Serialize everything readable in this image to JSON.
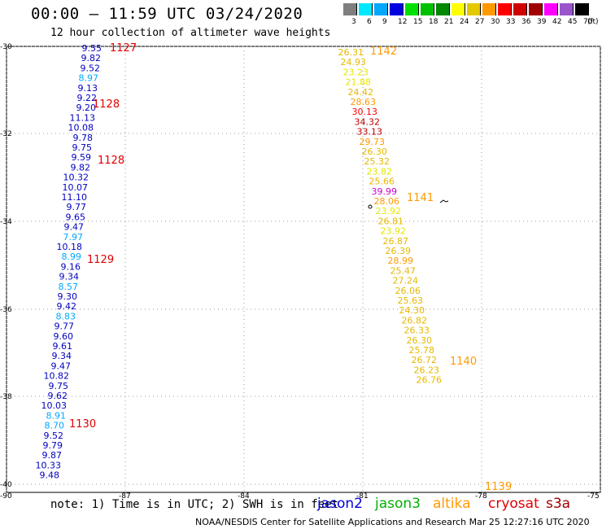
{
  "header": {
    "title": "00:00 — 11:59 UTC 03/24/2020",
    "subtitle": "12 hour collection of altimeter wave heights"
  },
  "scale": {
    "unit_label": "(ft)",
    "steps": [
      {
        "label": "3",
        "color": "#7f7f7f"
      },
      {
        "label": "6",
        "color": "#00e8ff"
      },
      {
        "label": "9",
        "color": "#00a8ff"
      },
      {
        "label": "12",
        "color": "#0000e0"
      },
      {
        "label": "15",
        "color": "#00e000"
      },
      {
        "label": "18",
        "color": "#00c000"
      },
      {
        "label": "21",
        "color": "#008800"
      },
      {
        "label": "24",
        "color": "#ffff00"
      },
      {
        "label": "27",
        "color": "#e6c800"
      },
      {
        "label": "30",
        "color": "#ff9900"
      },
      {
        "label": "33",
        "color": "#ff0000"
      },
      {
        "label": "36",
        "color": "#d00000"
      },
      {
        "label": "39",
        "color": "#a00000"
      },
      {
        "label": "42",
        "color": "#ff00ff"
      },
      {
        "label": "45",
        "color": "#9955cc"
      },
      {
        "label": "70",
        "color": "#000000"
      }
    ]
  },
  "map": {
    "lat_labels": [
      "-30",
      "-32",
      "-34",
      "-36",
      "-38",
      "-40"
    ],
    "lon_labels": [
      "-90",
      "-87",
      "-84",
      "-81",
      "-78",
      "-75"
    ]
  },
  "tracks": [
    {
      "time_label": {
        "text": "1127",
        "color": "#e00000"
      },
      "values": [
        {
          "v": "9.55",
          "c": "#0000c0"
        },
        {
          "v": "9.82",
          "c": "#0000c0"
        },
        {
          "v": "9.52",
          "c": "#0000c0"
        },
        {
          "v": "8.97",
          "c": "#00a8ff"
        },
        {
          "v": "9.13",
          "c": "#0000c0"
        },
        {
          "v": "9.22",
          "c": "#0000c0"
        },
        {
          "v": "9.20",
          "c": "#0000c0"
        },
        {
          "v": "11.13",
          "c": "#0000c0"
        },
        {
          "v": "10.08",
          "c": "#0000c0"
        },
        {
          "v": "9.78",
          "c": "#0000c0"
        },
        {
          "v": "9.75",
          "c": "#0000c0"
        },
        {
          "v": "9.59",
          "c": "#0000c0"
        },
        {
          "v": "9.82",
          "c": "#0000c0"
        },
        {
          "v": "10.32",
          "c": "#0000c0"
        },
        {
          "v": "10.07",
          "c": "#0000c0"
        },
        {
          "v": "11.10",
          "c": "#0000c0"
        },
        {
          "v": "9.77",
          "c": "#0000c0"
        },
        {
          "v": "9.65",
          "c": "#0000c0"
        },
        {
          "v": "9.47",
          "c": "#0000c0"
        },
        {
          "v": "7.97",
          "c": "#00a8ff"
        },
        {
          "v": "10.18",
          "c": "#0000c0"
        },
        {
          "v": "8.99",
          "c": "#00a8ff"
        },
        {
          "v": "9.16",
          "c": "#0000c0"
        },
        {
          "v": "9.34",
          "c": "#0000c0"
        },
        {
          "v": "8.57",
          "c": "#00a8ff"
        },
        {
          "v": "9.30",
          "c": "#0000c0"
        },
        {
          "v": "9.42",
          "c": "#0000c0"
        },
        {
          "v": "8.83",
          "c": "#00a8ff"
        },
        {
          "v": "9.77",
          "c": "#0000c0"
        },
        {
          "v": "9.60",
          "c": "#0000c0"
        },
        {
          "v": "9.61",
          "c": "#0000c0"
        },
        {
          "v": "9.34",
          "c": "#0000c0"
        },
        {
          "v": "9.47",
          "c": "#0000c0"
        },
        {
          "v": "10.82",
          "c": "#0000c0"
        },
        {
          "v": "9.75",
          "c": "#0000c0"
        },
        {
          "v": "9.62",
          "c": "#0000c0"
        },
        {
          "v": "10.03",
          "c": "#0000c0"
        },
        {
          "v": "8.91",
          "c": "#00a8ff"
        },
        {
          "v": "8.70",
          "c": "#00a8ff"
        },
        {
          "v": "9.52",
          "c": "#0000c0"
        },
        {
          "v": "9.79",
          "c": "#0000c0"
        },
        {
          "v": "9.87",
          "c": "#0000c0"
        },
        {
          "v": "10.33",
          "c": "#0000c0"
        },
        {
          "v": "9.48",
          "c": "#0000c0"
        }
      ],
      "extra_labels": [
        {
          "text": "1128",
          "color": "#e00000"
        },
        {
          "text": "1128",
          "color": "#e00000"
        },
        {
          "text": "1129",
          "color": "#e00000"
        },
        {
          "text": "1130",
          "color": "#e00000"
        }
      ]
    },
    {
      "time_label": {
        "text": "1142",
        "color": "#ff9900"
      },
      "values": [
        {
          "v": "26.31",
          "c": "#e6b800"
        },
        {
          "v": "24.93",
          "c": "#e6b800"
        },
        {
          "v": "23.23",
          "c": "#e6e600"
        },
        {
          "v": "21.88",
          "c": "#e6e600"
        },
        {
          "v": "24.42",
          "c": "#e6b800"
        },
        {
          "v": "28.63",
          "c": "#ff9900"
        },
        {
          "v": "30.13",
          "c": "#ff0000"
        },
        {
          "v": "34.32",
          "c": "#c00000"
        },
        {
          "v": "33.13",
          "c": "#c00000"
        },
        {
          "v": "29.73",
          "c": "#ff9900"
        },
        {
          "v": "26.30",
          "c": "#e6b800"
        },
        {
          "v": "25.32",
          "c": "#e6b800"
        },
        {
          "v": "23.82",
          "c": "#e6e600"
        },
        {
          "v": "25.66",
          "c": "#e6b800"
        },
        {
          "v": "39.99",
          "c": "#cc00cc"
        },
        {
          "v": "28.06",
          "c": "#ff9900"
        },
        {
          "v": "23.92",
          "c": "#e6e600"
        },
        {
          "v": "26.81",
          "c": "#e6b800"
        },
        {
          "v": "23.92",
          "c": "#e6e600"
        },
        {
          "v": "26.87",
          "c": "#e6b800"
        },
        {
          "v": "26.39",
          "c": "#e6b800"
        },
        {
          "v": "28.99",
          "c": "#ff9900"
        },
        {
          "v": "25.47",
          "c": "#e6b800"
        },
        {
          "v": "27.24",
          "c": "#e6b800"
        },
        {
          "v": "26.06",
          "c": "#e6b800"
        },
        {
          "v": "25.63",
          "c": "#e6b800"
        },
        {
          "v": "24.30",
          "c": "#e6b800"
        },
        {
          "v": "26.82",
          "c": "#e6b800"
        },
        {
          "v": "26.33",
          "c": "#e6b800"
        },
        {
          "v": "26.30",
          "c": "#e6b800"
        },
        {
          "v": "25.78",
          "c": "#e6b800"
        },
        {
          "v": "26.72",
          "c": "#e6b800"
        },
        {
          "v": "26.23",
          "c": "#e6b800"
        },
        {
          "v": "26.76",
          "c": "#e6b800"
        }
      ],
      "extra_labels": [
        {
          "text": "1141",
          "color": "#ff9900"
        },
        {
          "text": "1140",
          "color": "#ff9900"
        },
        {
          "text": "1139",
          "color": "#ff9900"
        }
      ]
    }
  ],
  "footer": {
    "note": "note: 1) Time is in UTC; 2) SWH is in feet",
    "satellites": [
      {
        "name": "jason2",
        "color": "#0000e0"
      },
      {
        "name": "jason3",
        "color": "#00b000"
      },
      {
        "name": "altika",
        "color": "#ff9900"
      },
      {
        "name": "cryosat",
        "color": "#e00000"
      },
      {
        "name": "s3a",
        "color": "#a00000"
      }
    ],
    "credit": "NOAA/NESDIS Center for Satellite Applications and Research    Mar 25 12:27:16 UTC 2020"
  }
}
